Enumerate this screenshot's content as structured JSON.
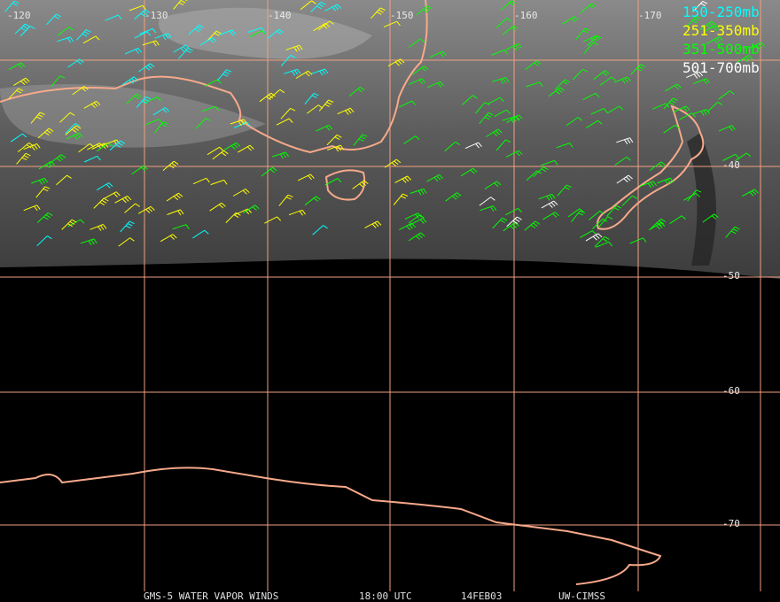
{
  "map": {
    "longitude_labels": [
      "-120",
      "-130",
      "-140",
      "-150",
      "-160",
      "-170"
    ],
    "latitude_labels": [
      "-40",
      "-50",
      "-60",
      "-70"
    ],
    "legend": [
      {
        "label": "150-250mb",
        "color": "#00ffff"
      },
      {
        "label": "251-350mb",
        "color": "#ffff00"
      },
      {
        "label": "351-500mb",
        "color": "#00ff00"
      },
      {
        "label": "501-700mb",
        "color": "#ffffff"
      }
    ],
    "footer": [
      "GMS-5 WATER VAPOR WINDS",
      "18:00 UTC",
      "14FEB03",
      "UW-CIMSS"
    ]
  }
}
